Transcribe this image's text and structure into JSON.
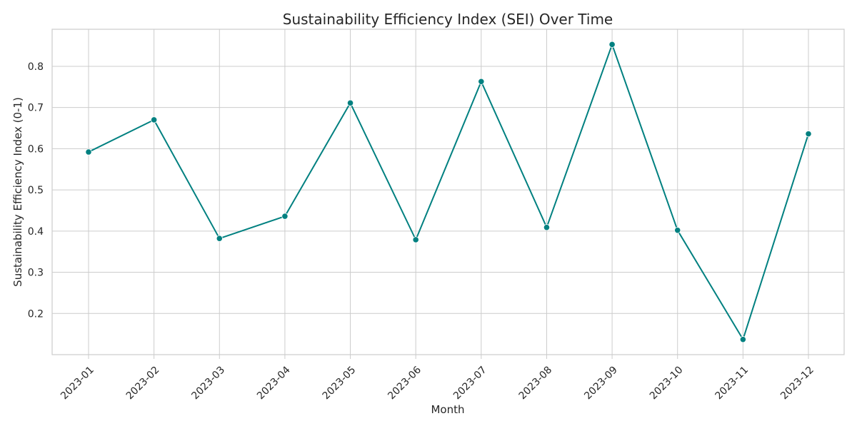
{
  "chart_data": {
    "type": "line",
    "title": "Sustainability Efficiency Index (SEI) Over Time",
    "xlabel": "Month",
    "ylabel": "Sustainability Efficiency Index (0-1)",
    "categories": [
      "2023-01",
      "2023-02",
      "2023-03",
      "2023-04",
      "2023-05",
      "2023-06",
      "2023-07",
      "2023-08",
      "2023-09",
      "2023-10",
      "2023-11",
      "2023-12"
    ],
    "series": [
      {
        "values": [
          0.592,
          0.67,
          0.382,
          0.436,
          0.711,
          0.379,
          0.763,
          0.409,
          0.853,
          0.402,
          0.137,
          0.636
        ]
      }
    ],
    "ylim": [
      0.1,
      0.89
    ],
    "yticks": [
      0.2,
      0.3,
      0.4,
      0.5,
      0.6,
      0.7,
      0.8
    ],
    "ytick_labels": [
      "0.2",
      "0.3",
      "0.4",
      "0.5",
      "0.6",
      "0.7",
      "0.8"
    ],
    "line_color": "#008080",
    "marker": "circle",
    "grid": true,
    "x_tick_rotation": 45
  }
}
